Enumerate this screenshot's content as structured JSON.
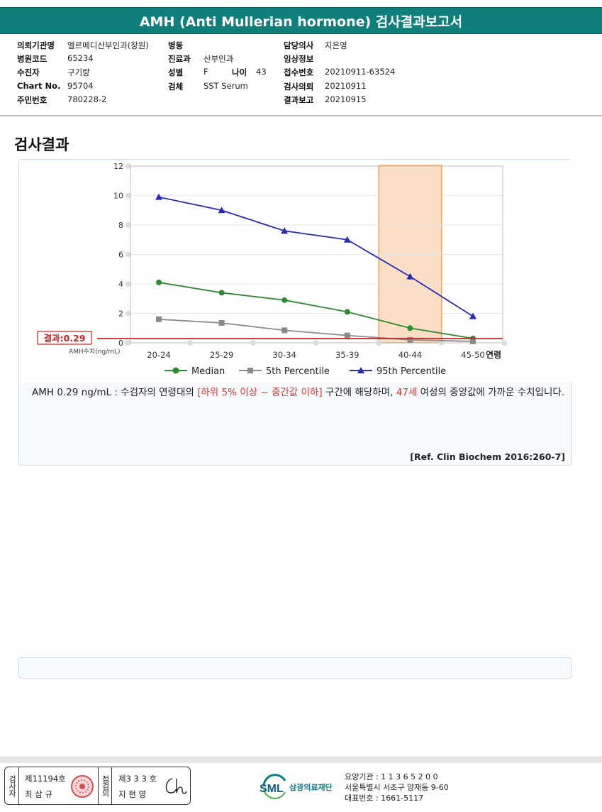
{
  "report": {
    "title": "AMH (Anti Mullerian hormone) 검사결과보고서"
  },
  "patient_info": {
    "col1": [
      {
        "label": "의뢰기관명",
        "value": "엘르메디산부인과(창원)"
      },
      {
        "label": "병원코드",
        "value": "65234"
      },
      {
        "label": "수진자",
        "value": "구기랑"
      },
      {
        "label": "Chart No.",
        "value": "95704"
      },
      {
        "label": "주민번호",
        "value": "780228-2"
      }
    ],
    "col2": [
      {
        "label": "병동",
        "value": ""
      },
      {
        "label": "진료과",
        "value": "산부인과"
      },
      {
        "label": "성별",
        "value": "F"
      },
      {
        "label": "검체",
        "value": "SST Serum"
      }
    ],
    "age": {
      "label": "나이",
      "value": "43"
    },
    "col3": [
      {
        "label": "담당의사",
        "value": "지은영"
      },
      {
        "label": "임상정보",
        "value": ""
      },
      {
        "label": "접수번호",
        "value": "20210911-63524"
      },
      {
        "label": "검사의뢰",
        "value": "20210911"
      },
      {
        "label": "결과보고",
        "value": "20210915"
      }
    ]
  },
  "section": {
    "title": "검사결과"
  },
  "chart_data": {
    "type": "line",
    "categories": [
      "20-24",
      "25-29",
      "30-34",
      "35-39",
      "40-44",
      "45-50"
    ],
    "xlabel": "연령",
    "ylabel": "AMH수치(ng/mL)",
    "ylim": [
      0,
      12
    ],
    "yticks": [
      0,
      2,
      4,
      6,
      8,
      10,
      12
    ],
    "series": [
      {
        "name": "Median",
        "color": "#2e8b2e",
        "marker": "circle",
        "values": [
          4.1,
          3.4,
          2.9,
          2.1,
          1.0,
          0.3
        ]
      },
      {
        "name": "5th Percentile",
        "color": "#8a8a8a",
        "marker": "square",
        "values": [
          1.6,
          1.35,
          0.85,
          0.5,
          0.2,
          0.1
        ]
      },
      {
        "name": "95th Percentile",
        "color": "#2a2ab8",
        "marker": "triangle",
        "values": [
          9.9,
          9.0,
          7.6,
          7.0,
          4.5,
          1.8
        ]
      }
    ],
    "highlight_category": "40-44",
    "highlight_color": "#f2a35c",
    "result_line": {
      "label": "결과:0.29",
      "value": 0.29,
      "color": "#cc1f1f"
    },
    "legend_placement": "bottom"
  },
  "description": {
    "prefix": "AMH  0.29 ng/mL : 수검자의 연령대의 ",
    "range": "[하위 5% 이상 ~ 중간값 이하]",
    "middle": " 구간에 해당하며, ",
    "age": "47세",
    "suffix": " 여성의 중앙값에 가까운 수치입니다.",
    "reference": "[Ref. Clin Biochem 2016:260-7]"
  },
  "footer": {
    "examiner_label": "검사자",
    "examiner_no": "제11194호",
    "examiner_name": "최 삼 규",
    "reviewer_label": "점검의",
    "reviewer_no": "제3 3 3 호",
    "reviewer_name": "지 현 영",
    "logo_abbr": "SML",
    "logo_name": "삼광의료재단",
    "org_code": "요양기관 : 1 1 3 6 5 2 0 0",
    "org_address": "서울특별시 서초구 양재동 9-60",
    "org_phone": "대표번호 : 1661-5117"
  }
}
